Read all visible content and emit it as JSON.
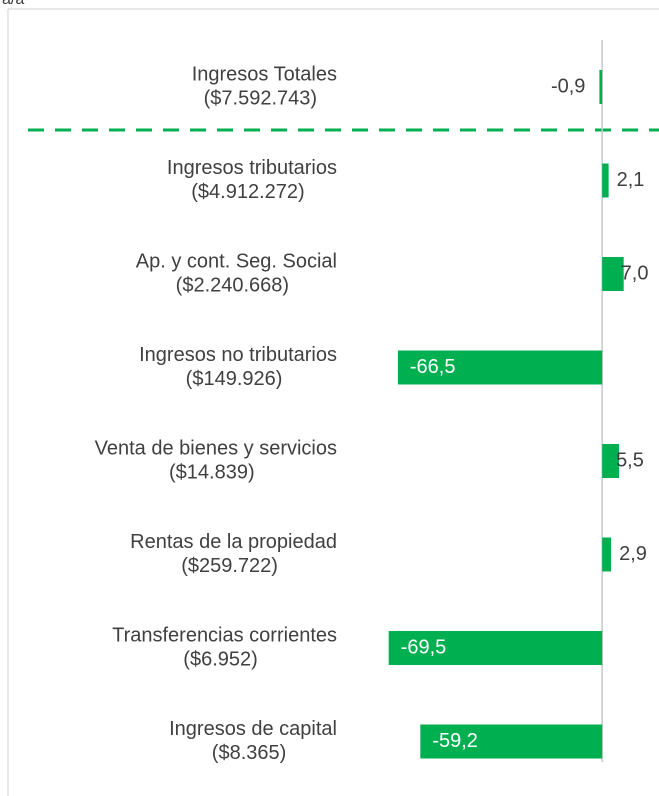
{
  "chart_data": {
    "type": "hbar",
    "subtitle": "a/a",
    "categories": [
      "Ingresos Totales",
      "Ingresos tributarios",
      "Ap. y cont. Seg. Social",
      "Ingresos no tributarios",
      "Venta de bienes y servicios",
      "Rentas de la propiedad",
      "Transferencias corrientes",
      "Ingresos de capital"
    ],
    "category_totals": [
      "($7.592.743)",
      "($4.912.272)",
      "($2.240.668)",
      "($149.926)",
      "($14.839)",
      "($259.722)",
      "($6.952)",
      "($8.365)"
    ],
    "values": [
      -0.9,
      2.1,
      7.0,
      -66.5,
      5.5,
      2.9,
      -69.5,
      -59.2
    ],
    "value_labels": [
      "-0,9",
      "2,1",
      "7,0",
      "-66,5",
      "5,5",
      "2,9",
      "-69,5",
      "-59,2"
    ],
    "color": "#00b050",
    "xlim": [
      -72,
      18.5
    ]
  }
}
